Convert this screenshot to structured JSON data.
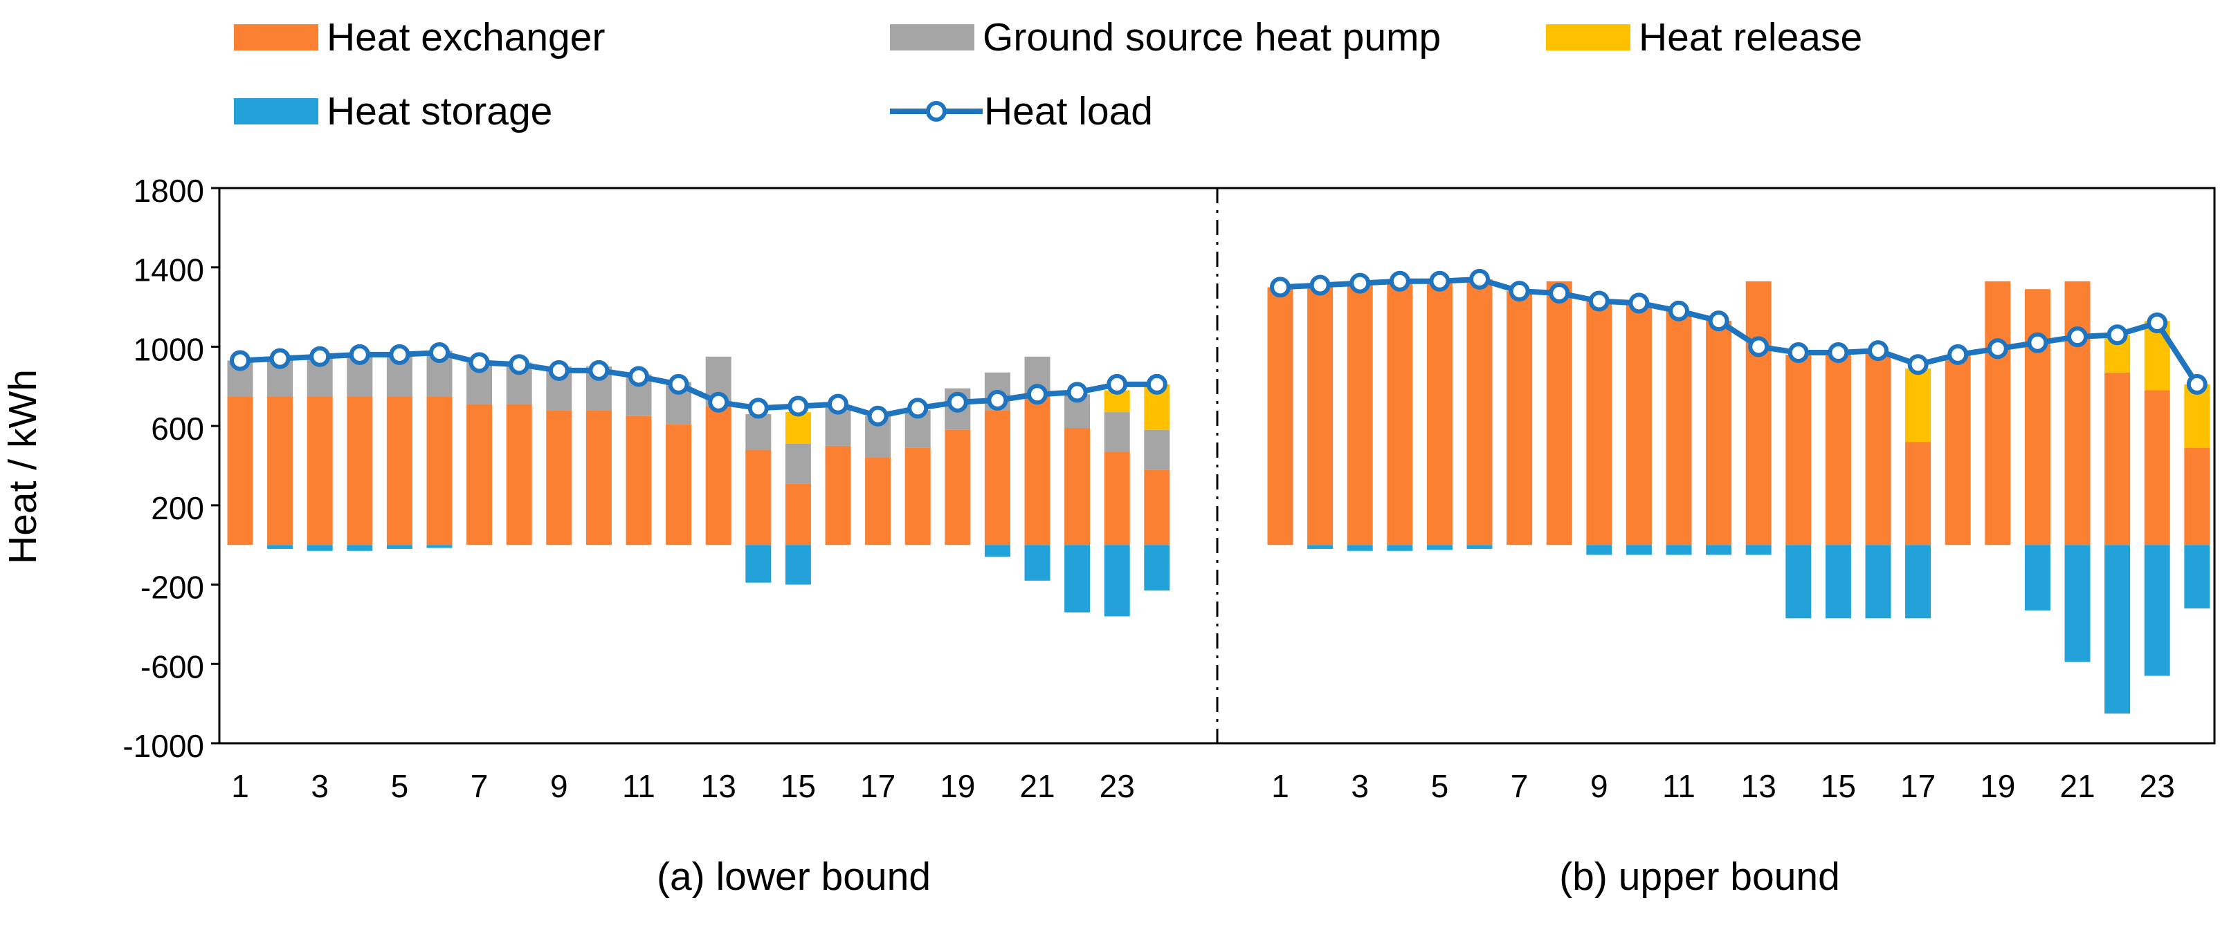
{
  "chart_data": {
    "type": "bar",
    "subtype": "stacked-bar-with-line",
    "ylabel": "Heat / kWh",
    "ylim": [
      -1000,
      1800
    ],
    "yticks": [
      -1000,
      -600,
      -200,
      200,
      600,
      1000,
      1400,
      1800
    ],
    "xtick_labels": [
      "1",
      "3",
      "5",
      "7",
      "9",
      "11",
      "13",
      "15",
      "17",
      "19",
      "21",
      "23"
    ],
    "hours": [
      1,
      2,
      3,
      4,
      5,
      6,
      7,
      8,
      9,
      10,
      11,
      12,
      13,
      14,
      15,
      16,
      17,
      18,
      19,
      20,
      21,
      22,
      23,
      24
    ],
    "legend": {
      "heat_exchanger": "Heat exchanger",
      "gshp": "Ground source heat pump",
      "heat_release": "Heat release",
      "heat_storage": "Heat storage",
      "heat_load": "Heat load"
    },
    "colors": {
      "heat_exchanger": "#FB8031",
      "gshp": "#A5A5A5",
      "heat_release": "#FFC000",
      "heat_storage": "#23A2D9",
      "heat_load": "#1F74C0",
      "marker_fill": "#FFFFFF",
      "axis": "#000000",
      "divider": "#000000"
    },
    "panels": [
      {
        "caption": "(a) lower bound",
        "series": [
          {
            "name": "Heat exchanger",
            "values": [
              750,
              750,
              750,
              750,
              750,
              750,
              710,
              710,
              680,
              680,
              650,
              610,
              700,
              480,
              310,
              500,
              440,
              490,
              580,
              680,
              750,
              590,
              470,
              380
            ]
          },
          {
            "name": "Ground source heat pump",
            "values": [
              180,
              190,
              210,
              220,
              220,
              230,
              210,
              210,
              220,
              220,
              210,
              210,
              250,
              180,
              200,
              200,
              210,
              190,
              210,
              190,
              200,
              170,
              200,
              200
            ]
          },
          {
            "name": "Heat release",
            "values": [
              0,
              0,
              0,
              0,
              0,
              0,
              0,
              0,
              0,
              0,
              0,
              0,
              0,
              0,
              160,
              0,
              0,
              0,
              0,
              0,
              0,
              0,
              110,
              230
            ]
          },
          {
            "name": "Heat storage",
            "values": [
              0,
              -20,
              -30,
              -30,
              -20,
              -15,
              0,
              0,
              0,
              0,
              0,
              0,
              0,
              -190,
              -200,
              0,
              0,
              0,
              0,
              -60,
              -180,
              -340,
              -360,
              -230
            ]
          },
          {
            "name": "Heat load",
            "values": [
              930,
              940,
              950,
              960,
              960,
              970,
              920,
              910,
              880,
              880,
              850,
              810,
              720,
              690,
              700,
              710,
              650,
              690,
              720,
              730,
              760,
              770,
              810,
              810
            ]
          }
        ]
      },
      {
        "caption": "(b) upper bound",
        "series": [
          {
            "name": "Heat exchanger",
            "values": [
              1300,
              1300,
              1320,
              1330,
              1330,
              1340,
              1280,
              1330,
              1230,
              1220,
              1180,
              1130,
              1330,
              960,
              980,
              970,
              520,
              960,
              1330,
              1290,
              1330,
              870,
              780,
              490
            ]
          },
          {
            "name": "Ground source heat pump",
            "values": [
              0,
              0,
              0,
              0,
              0,
              0,
              0,
              0,
              0,
              0,
              0,
              0,
              0,
              0,
              0,
              0,
              0,
              0,
              0,
              0,
              0,
              0,
              0,
              0
            ]
          },
          {
            "name": "Heat release",
            "values": [
              0,
              0,
              0,
              0,
              0,
              0,
              0,
              0,
              0,
              0,
              0,
              0,
              0,
              0,
              0,
              0,
              370,
              0,
              0,
              0,
              0,
              190,
              350,
              320
            ]
          },
          {
            "name": "Heat storage",
            "values": [
              0,
              -20,
              -30,
              -30,
              -25,
              -20,
              0,
              0,
              -50,
              -50,
              -50,
              -50,
              -50,
              -370,
              -370,
              -370,
              -370,
              0,
              0,
              -330,
              -590,
              -850,
              -660,
              -320
            ]
          },
          {
            "name": "Heat load",
            "values": [
              1300,
              1310,
              1320,
              1330,
              1330,
              1340,
              1280,
              1270,
              1230,
              1220,
              1180,
              1130,
              1000,
              970,
              970,
              980,
              910,
              960,
              990,
              1020,
              1050,
              1060,
              1120,
              810
            ]
          }
        ]
      }
    ]
  }
}
